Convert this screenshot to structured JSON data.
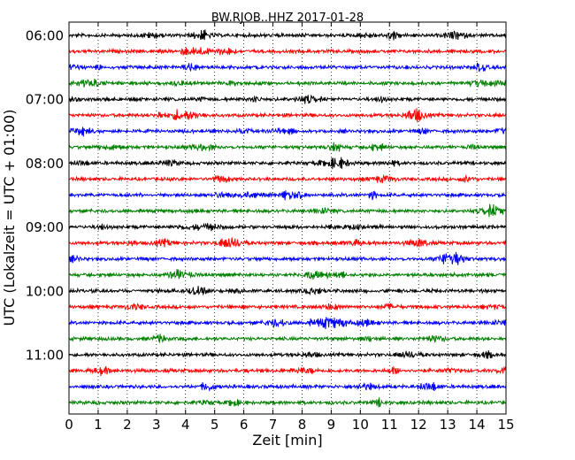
{
  "chart_data": {
    "type": "line",
    "title": "BW.RJOB..HHZ 2017-01-28",
    "xlabel": "Zeit  [min]",
    "ylabel": "UTC (Lokalzeit = UTC + 01:00)",
    "xlim": [
      0,
      15
    ],
    "x_ticks": [
      "0",
      "1",
      "2",
      "3",
      "4",
      "5",
      "6",
      "7",
      "8",
      "9",
      "10",
      "11",
      "12",
      "13",
      "14",
      "15"
    ],
    "y_tick_labels": [
      "06:00",
      "07:00",
      "08:00",
      "09:00",
      "10:00",
      "11:00"
    ],
    "traces_per_hour": 4,
    "trace_count": 24,
    "trace_start_times": [
      "06:00",
      "06:15",
      "06:30",
      "06:45",
      "07:00",
      "07:15",
      "07:30",
      "07:45",
      "08:00",
      "08:15",
      "08:30",
      "08:45",
      "09:00",
      "09:15",
      "09:30",
      "09:45",
      "10:00",
      "10:15",
      "10:30",
      "10:45",
      "11:00",
      "11:15",
      "11:30",
      "11:45"
    ],
    "trace_colors": [
      "#000000",
      "#ff0000",
      "#0000ff",
      "#008000"
    ],
    "grid": "x-dotted"
  }
}
